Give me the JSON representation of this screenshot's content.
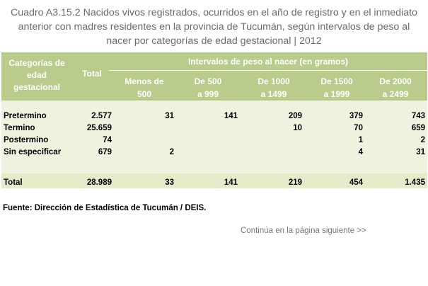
{
  "title": {
    "line1": "Cuadro A3.15.2  Nacidos vivos registrados, ocurridos en el año de registro y en el inmediato",
    "line2": "anterior con madres residentes en la provincia de Tucumán, según intervalos de peso al",
    "line3": "nacer por categorías de edad gestacional |  2012"
  },
  "header": {
    "category": [
      "Categorías de",
      "edad",
      "gestacional"
    ],
    "total": "Total",
    "group": "Intervalos de peso al nacer (en gramos)",
    "cols": [
      [
        "Menos de",
        "500"
      ],
      [
        "De 500",
        "a 999"
      ],
      [
        "De 1000",
        "a 1499"
      ],
      [
        "De 1500",
        "a 1999"
      ],
      [
        "De 2000",
        "a 2499"
      ]
    ]
  },
  "rows": [
    {
      "label": "Pretermino",
      "total": "2.577",
      "c": [
        "31",
        "141",
        "209",
        "379",
        "743"
      ]
    },
    {
      "label": "Termino",
      "total": "25.659",
      "c": [
        "",
        "",
        "10",
        "70",
        "659"
      ]
    },
    {
      "label": "Postermino",
      "total": "74",
      "c": [
        "",
        "",
        "",
        "1",
        "2"
      ]
    },
    {
      "label": "Sin especificar",
      "total": "679",
      "c": [
        "2",
        "",
        "",
        "4",
        "31"
      ]
    }
  ],
  "total_row": {
    "label": "Total",
    "total": "28.989",
    "c": [
      "33",
      "141",
      "219",
      "454",
      "1.435"
    ]
  },
  "source": "Fuente: Dirección de Estadística de Tucumán / DEIS.",
  "continue": "Continúa en la página siguiente >>",
  "colors": {
    "header_bg": "#b9cc8c",
    "body_bg": "#eef2df",
    "total_bg": "#e3ebc8",
    "title_text": "#6b6b6b"
  }
}
